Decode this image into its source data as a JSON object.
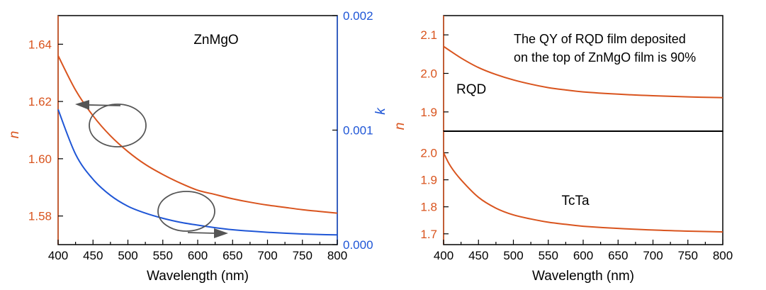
{
  "colors": {
    "n_color": "#d9541e",
    "k_color": "#1f56d6",
    "frame": "#000000",
    "annotation": "#555555"
  },
  "chart_data": [
    {
      "type": "line",
      "panel": "left",
      "title": "ZnMgO",
      "xlabel": "Wavelength (nm)",
      "ylabel": "n",
      "y2label": "k",
      "xlim": [
        400,
        800
      ],
      "ylim": [
        1.57,
        1.65
      ],
      "y2lim": [
        0.0,
        0.002
      ],
      "xticks": [
        "400",
        "450",
        "500",
        "550",
        "600",
        "650",
        "700",
        "750",
        "800"
      ],
      "yticks": [
        "1.58",
        "1.60",
        "1.62",
        "1.64"
      ],
      "y2ticks": [
        "0.000",
        "0.001",
        "0.002"
      ],
      "x": [
        400,
        425,
        450,
        475,
        500,
        525,
        550,
        575,
        600,
        625,
        650,
        675,
        700,
        725,
        750,
        775,
        800
      ],
      "series": [
        {
          "name": "n",
          "axis": "left",
          "values": [
            1.636,
            1.624,
            1.615,
            1.608,
            1.6025,
            1.598,
            1.5945,
            1.5915,
            1.589,
            1.5875,
            1.586,
            1.5848,
            1.5838,
            1.583,
            1.5822,
            1.5816,
            1.581
          ]
        },
        {
          "name": "k",
          "axis": "right",
          "values": [
            0.00118,
            0.00079,
            0.00057,
            0.00043,
            0.000335,
            0.000275,
            0.00023,
            0.000195,
            0.00017,
            0.000148,
            0.00013,
            0.000118,
            0.000108,
            0.0001,
            9.3e-05,
            8.8e-05,
            8.5e-05
          ]
        }
      ]
    },
    {
      "type": "line",
      "panel": "right-top",
      "label": "RQD",
      "annotation": [
        "The QY of RQD film deposited",
        "on the top of ZnMgO film is 90%"
      ],
      "ylabel": "n",
      "xlim": [
        400,
        800
      ],
      "ylim": [
        1.85,
        2.15
      ],
      "yticks": [
        "1.9",
        "2.0",
        "2.1"
      ],
      "x": [
        400,
        425,
        450,
        475,
        500,
        525,
        550,
        575,
        600,
        650,
        700,
        750,
        800
      ],
      "series": [
        {
          "name": "n",
          "values": [
            2.07,
            2.04,
            2.015,
            1.997,
            1.983,
            1.972,
            1.963,
            1.957,
            1.952,
            1.946,
            1.942,
            1.939,
            1.937
          ]
        }
      ]
    },
    {
      "type": "line",
      "panel": "right-bottom",
      "label": "TcTa",
      "xlabel": "Wavelength (nm)",
      "xlim": [
        400,
        800
      ],
      "ylim": [
        1.66,
        2.08
      ],
      "xticks": [
        "400",
        "450",
        "500",
        "550",
        "600",
        "650",
        "700",
        "750",
        "800"
      ],
      "yticks": [
        "1.7",
        "1.8",
        "1.9",
        "2.0"
      ],
      "x": [
        400,
        410,
        425,
        450,
        475,
        500,
        525,
        550,
        575,
        600,
        650,
        700,
        750,
        800
      ],
      "series": [
        {
          "name": "n",
          "values": [
            2.0,
            1.95,
            1.9,
            1.835,
            1.795,
            1.77,
            1.755,
            1.743,
            1.735,
            1.728,
            1.72,
            1.714,
            1.71,
            1.707
          ]
        }
      ]
    }
  ]
}
